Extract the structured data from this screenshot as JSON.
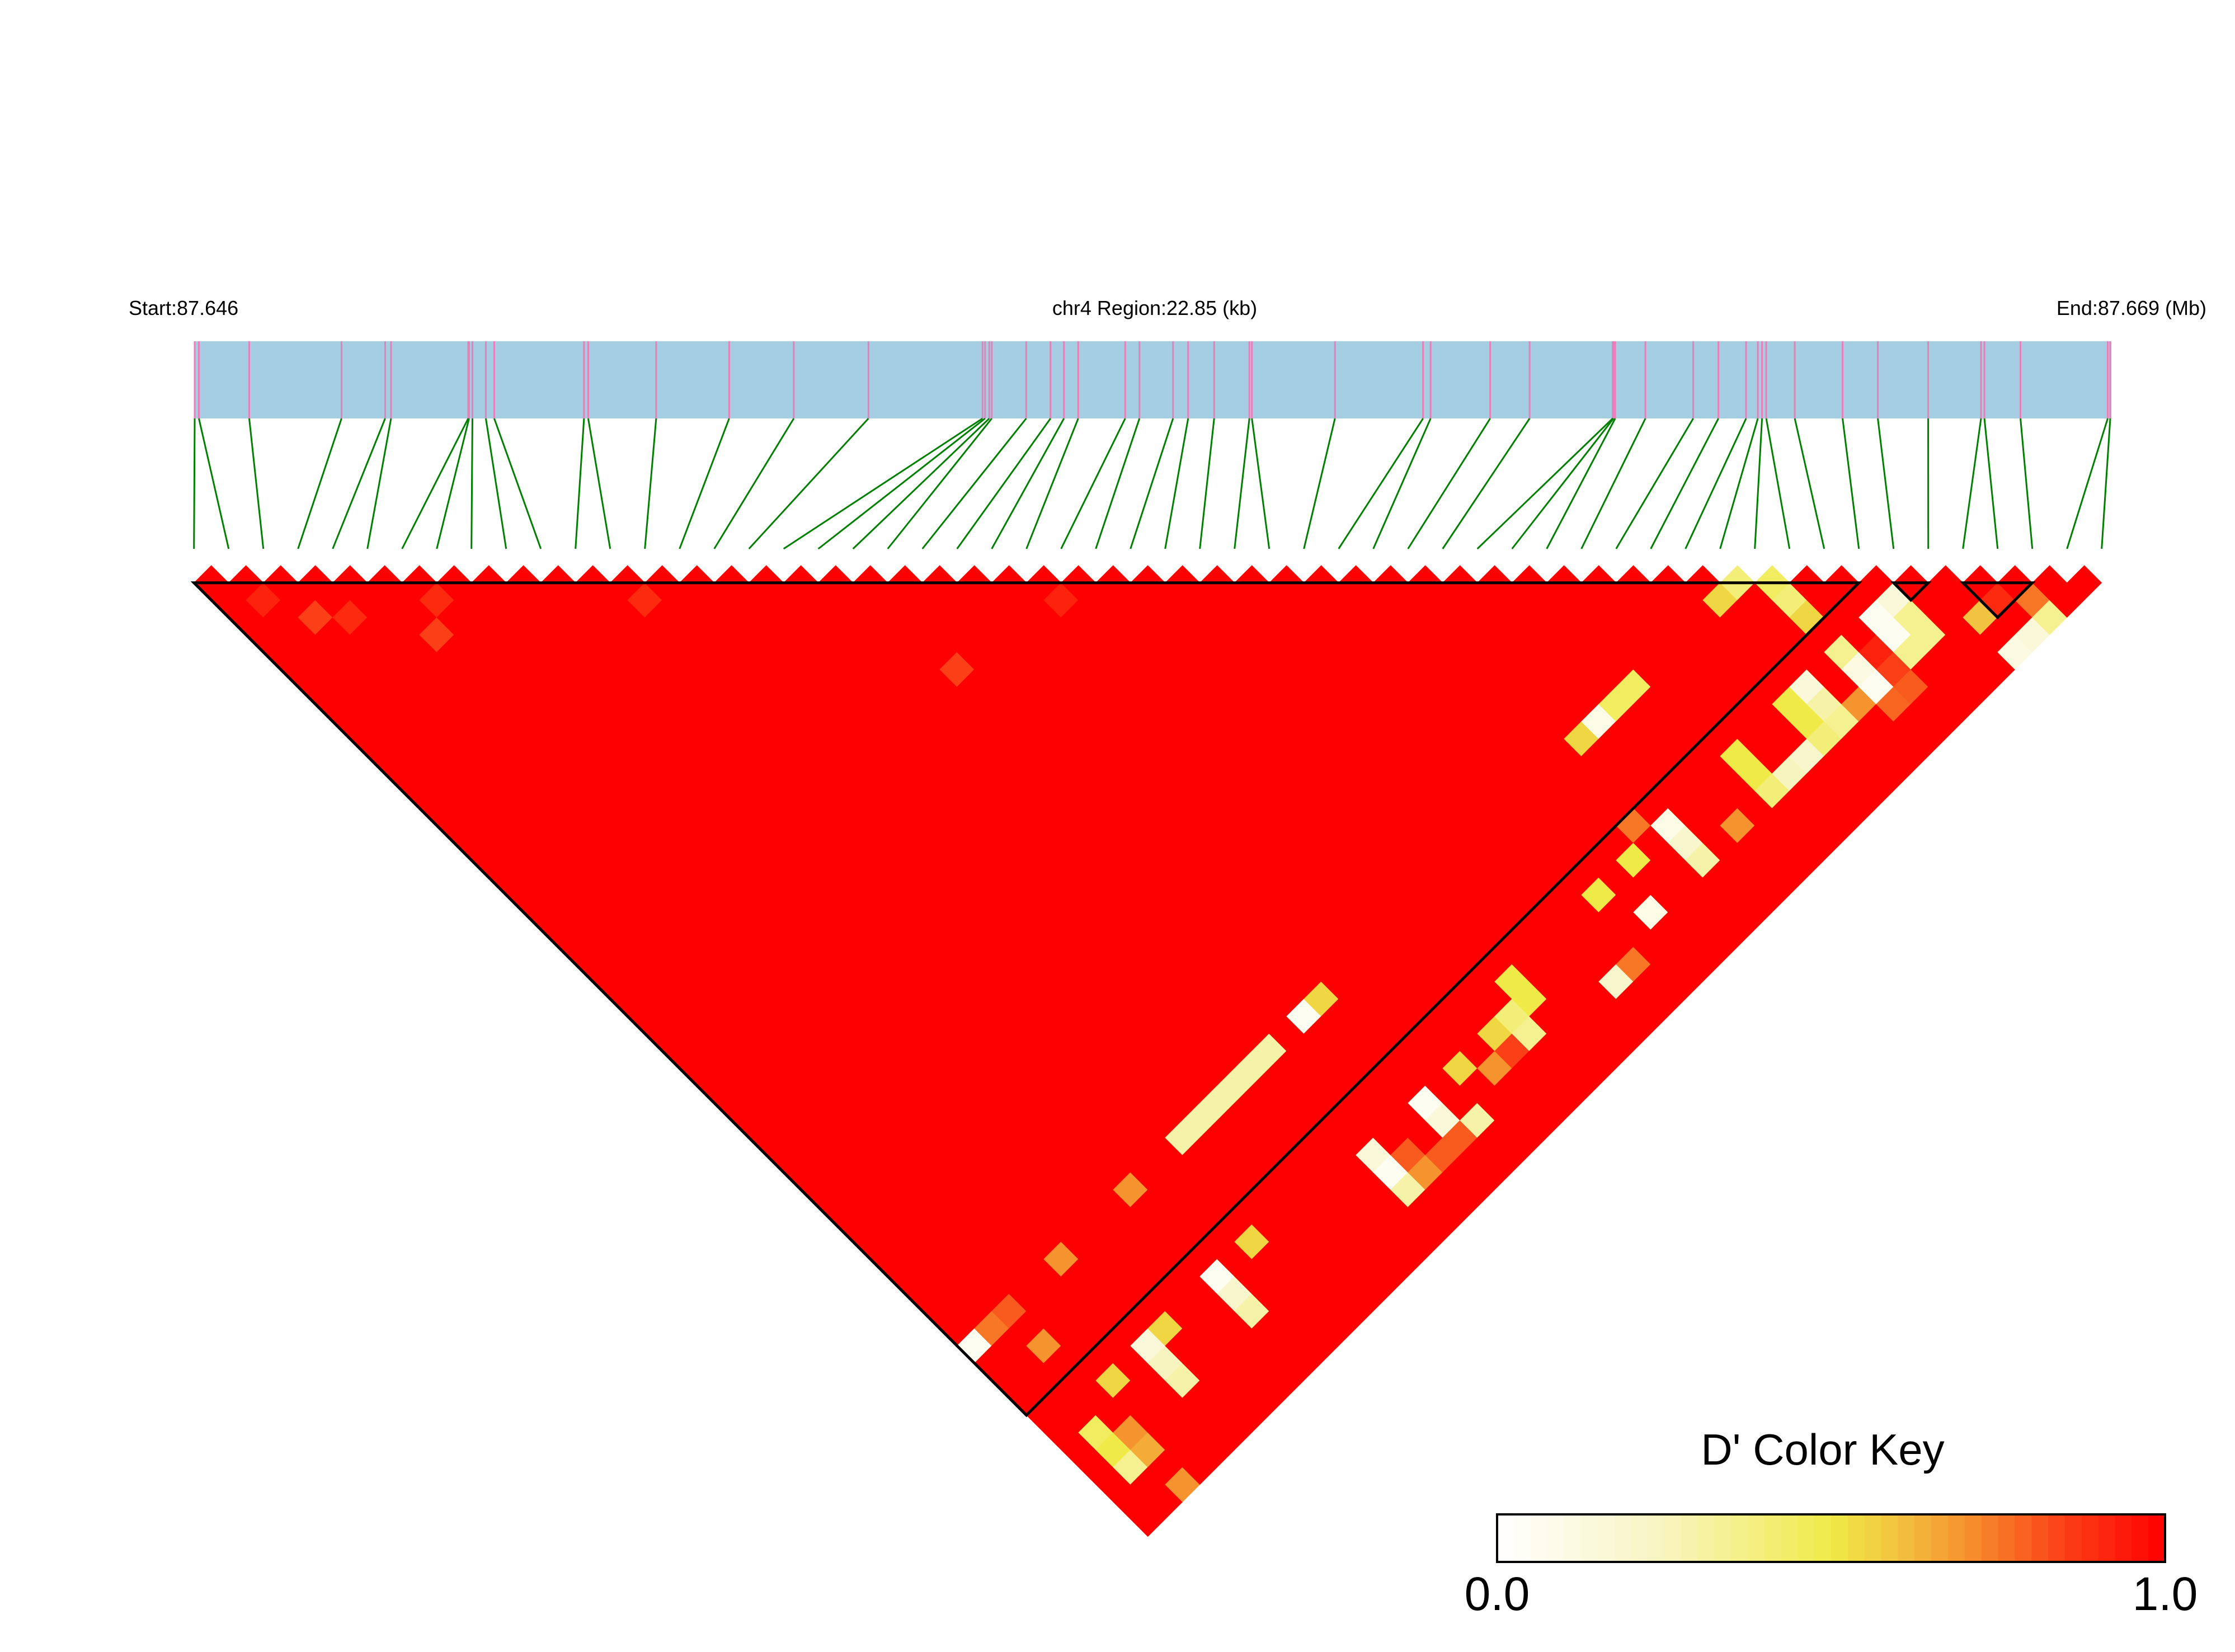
{
  "header": {
    "start_label": "Start:87.646",
    "region_label": "chr4 Region:22.85 (kb)",
    "end_label": "End:87.669 (Mb)"
  },
  "colors": {
    "gene_bar": "#a6cee3",
    "snp_tick": "#e87fb8",
    "connector": "#008000",
    "block_outline": "#000000"
  },
  "chart_data": {
    "type": "heatmap",
    "measure": "D'",
    "chromosome": "chr4",
    "region_kb": 22.85,
    "region_start_mb": 87.646,
    "region_end_mb": 87.669,
    "snp_positions_mb": [
      87.646,
      87.64605,
      87.64665,
      87.64775,
      87.64827,
      87.64834,
      87.64926,
      87.64927,
      87.64931,
      87.64947,
      87.64957,
      87.65064,
      87.65069,
      87.6515,
      87.65237,
      87.65314,
      87.65403,
      87.65539,
      87.65542,
      87.65547,
      87.6555,
      87.65591,
      87.6562,
      87.65636,
      87.65653,
      87.65709,
      87.65726,
      87.65766,
      87.65784,
      87.65815,
      87.65857,
      87.6586,
      87.65959,
      87.66064,
      87.66073,
      87.66144,
      87.66191,
      87.6629,
      87.66291,
      87.66293,
      87.66329,
      87.66386,
      87.66416,
      87.66449,
      87.66463,
      87.66468,
      87.66473,
      87.66507,
      87.66564,
      87.66606,
      87.66666,
      87.66729,
      87.66733,
      87.66776,
      87.6688,
      87.66883
    ],
    "default_dprime": 1.0,
    "dprime_exceptions": [
      [
        2,
        4,
        0.92
      ],
      [
        3,
        6,
        0.85
      ],
      [
        4,
        7,
        0.9
      ],
      [
        6,
        10,
        0.85
      ],
      [
        7,
        9,
        0.9
      ],
      [
        13,
        15,
        0.9
      ],
      [
        20,
        26,
        0.85
      ],
      [
        25,
        27,
        0.92
      ],
      [
        44,
        46,
        0.55
      ],
      [
        45,
        46,
        0.4
      ],
      [
        46,
        47,
        0.45
      ],
      [
        46,
        48,
        0.4
      ],
      [
        46,
        49,
        0.55
      ],
      [
        49,
        51,
        0.15
      ],
      [
        48,
        51,
        0.05
      ],
      [
        48,
        52,
        0.05
      ],
      [
        49,
        52,
        0.35
      ],
      [
        49,
        53,
        0.35
      ],
      [
        48,
        53,
        0.35
      ],
      [
        51,
        54,
        0.6
      ],
      [
        52,
        54,
        0.9
      ],
      [
        53,
        55,
        0.75
      ],
      [
        53,
        56,
        0.35
      ],
      [
        52,
        56,
        0.15
      ],
      [
        51,
        56,
        0.12
      ],
      [
        46,
        52,
        0.12
      ],
      [
        46,
        53,
        0.05
      ],
      [
        47,
        52,
        0.92
      ],
      [
        47,
        53,
        0.85
      ],
      [
        47,
        54,
        0.8
      ],
      [
        45,
        53,
        0.7
      ],
      [
        46,
        54,
        0.78
      ],
      [
        39,
        46,
        0.45
      ],
      [
        38,
        46,
        0.45
      ],
      [
        37,
        46,
        0.1
      ],
      [
        36,
        46,
        0.55
      ],
      [
        46,
        51,
        0.35
      ],
      [
        44,
        51,
        0.15
      ],
      [
        44,
        52,
        0.3
      ],
      [
        44,
        53,
        0.35
      ],
      [
        43,
        51,
        0.5
      ],
      [
        43,
        52,
        0.5
      ],
      [
        43,
        53,
        0.4
      ],
      [
        42,
        53,
        0.2
      ],
      [
        41,
        53,
        0.25
      ],
      [
        40,
        53,
        0.4
      ],
      [
        40,
        51,
        0.5
      ],
      [
        40,
        52,
        0.5
      ],
      [
        38,
        53,
        0.7
      ],
      [
        36,
        51,
        0.1
      ],
      [
        36,
        52,
        0.2
      ],
      [
        36,
        53,
        0.3
      ],
      [
        34,
        51,
        0.5
      ],
      [
        33,
        53,
        0.1
      ],
      [
        32,
        51,
        0.5
      ],
      [
        35,
        50,
        0.75
      ],
      [
        27,
        51,
        0.5
      ],
      [
        26,
        52,
        0.4
      ],
      [
        26,
        53,
        0.35
      ],
      [
        27,
        52,
        0.5
      ],
      [
        25,
        52,
        0.55
      ],
      [
        30,
        54,
        0.2
      ],
      [
        31,
        54,
        0.75
      ],
      [
        25,
        53,
        0.85
      ],
      [
        21,
        52,
        0.05
      ],
      [
        21,
        53,
        0.15
      ],
      [
        23,
        52,
        0.55
      ],
      [
        22,
        54,
        0.3
      ],
      [
        24,
        53,
        0.7
      ],
      [
        18,
        52,
        0.15
      ],
      [
        18,
        53,
        0.05
      ],
      [
        18,
        54,
        0.3
      ],
      [
        19,
        54,
        0.7
      ],
      [
        19,
        53,
        0.8
      ],
      [
        20,
        54,
        0.8
      ],
      [
        21,
        54,
        0.8
      ],
      [
        13,
        46,
        0.3
      ],
      [
        14,
        46,
        0.3
      ],
      [
        15,
        46,
        0.3
      ],
      [
        16,
        46,
        0.3
      ],
      [
        17,
        46,
        0.3
      ],
      [
        18,
        46,
        0.3
      ],
      [
        20,
        46,
        0.05
      ],
      [
        21,
        46,
        0.55
      ],
      [
        10,
        46,
        0.7
      ],
      [
        6,
        46,
        0.7
      ],
      [
        12,
        51,
        0.55
      ],
      [
        10,
        51,
        0.05
      ],
      [
        10,
        52,
        0.2
      ],
      [
        10,
        53,
        0.3
      ],
      [
        7,
        51,
        0.55
      ],
      [
        6,
        51,
        0.15
      ],
      [
        6,
        52,
        0.25
      ],
      [
        6,
        53,
        0.3
      ],
      [
        4,
        51,
        0.55
      ],
      [
        2,
        52,
        0.45
      ],
      [
        2,
        53,
        0.5
      ],
      [
        2,
        54,
        0.35
      ],
      [
        3,
        53,
        0.7
      ],
      [
        3,
        54,
        0.65
      ],
      [
        3,
        56,
        0.7
      ],
      [
        1,
        46,
        0.05
      ],
      [
        2,
        46,
        0.75
      ],
      [
        3,
        46,
        0.8
      ],
      [
        3,
        48,
        0.7
      ]
    ],
    "ld_blocks": [
      [
        1,
        49
      ],
      [
        50,
        51
      ],
      [
        52,
        54
      ]
    ],
    "color_key": {
      "title": "D' Color Key",
      "min_label": "0.0",
      "max_label": "1.0",
      "range": [
        0,
        1
      ],
      "steps": 40,
      "stops": [
        [
          0,
          "#ffffff"
        ],
        [
          0.25,
          "#f8f4c0"
        ],
        [
          0.5,
          "#f0ea48"
        ],
        [
          0.6,
          "#f2c340"
        ],
        [
          0.7,
          "#f5932e"
        ],
        [
          0.85,
          "#fb3f17"
        ],
        [
          1,
          "#ff0000"
        ]
      ]
    }
  }
}
